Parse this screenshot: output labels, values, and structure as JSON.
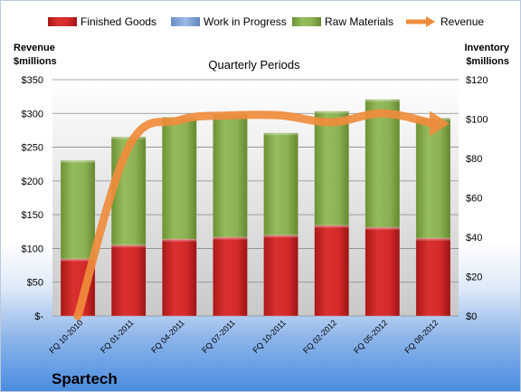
{
  "chart_data": {
    "type": "bar",
    "subtype": "stacked bar with line overlay",
    "plot_title": "Quarterly Periods",
    "company": "Spartech",
    "categories": [
      "FQ 10-2010",
      "FQ 01-2011",
      "FQ 04-2011",
      "FQ 07-2011",
      "FQ 10-2011",
      "FQ 02-2012",
      "FQ 05-2012",
      "FQ 08-2012"
    ],
    "series": [
      {
        "name": "Finished Goods",
        "axis": "right",
        "color": "#d42a2a",
        "values": [
          29,
          36,
          39,
          40,
          41,
          46,
          45,
          39.5
        ]
      },
      {
        "name": "Work in Progress",
        "axis": "right",
        "color": "#7fa2d6",
        "values": [
          0,
          0,
          0,
          0,
          0,
          0,
          0,
          0
        ]
      },
      {
        "name": "Raw Materials",
        "axis": "right",
        "color": "#8bb154",
        "values": [
          50,
          55,
          62,
          63,
          52,
          58,
          65,
          61
        ]
      },
      {
        "name": "Revenue",
        "axis": "left",
        "type": "line",
        "color": "#ef8c3c",
        "values": [
          0,
          250,
          290,
          297,
          297,
          287,
          300,
          285
        ]
      }
    ],
    "left_axis": {
      "title_line1": "Revenue",
      "title_line2": "$millions",
      "ylim": [
        0,
        350
      ],
      "ticks": [
        {
          "value": 0,
          "label": "$-"
        },
        {
          "value": 50,
          "label": "$50"
        },
        {
          "value": 100,
          "label": "$100"
        },
        {
          "value": 150,
          "label": "$150"
        },
        {
          "value": 200,
          "label": "$200"
        },
        {
          "value": 250,
          "label": "$250"
        },
        {
          "value": 300,
          "label": "$300"
        },
        {
          "value": 350,
          "label": "$350"
        }
      ]
    },
    "right_axis": {
      "title_line1": "Inventory",
      "title_line2": "$millions",
      "ylim": [
        0,
        120
      ],
      "ticks": [
        {
          "value": 0,
          "label": "$0"
        },
        {
          "value": 20,
          "label": "$20"
        },
        {
          "value": 40,
          "label": "$40"
        },
        {
          "value": 60,
          "label": "$60"
        },
        {
          "value": 80,
          "label": "$80"
        },
        {
          "value": 100,
          "label": "$100"
        },
        {
          "value": 120,
          "label": "$120"
        }
      ]
    },
    "grid": true,
    "legend_position": "top"
  }
}
